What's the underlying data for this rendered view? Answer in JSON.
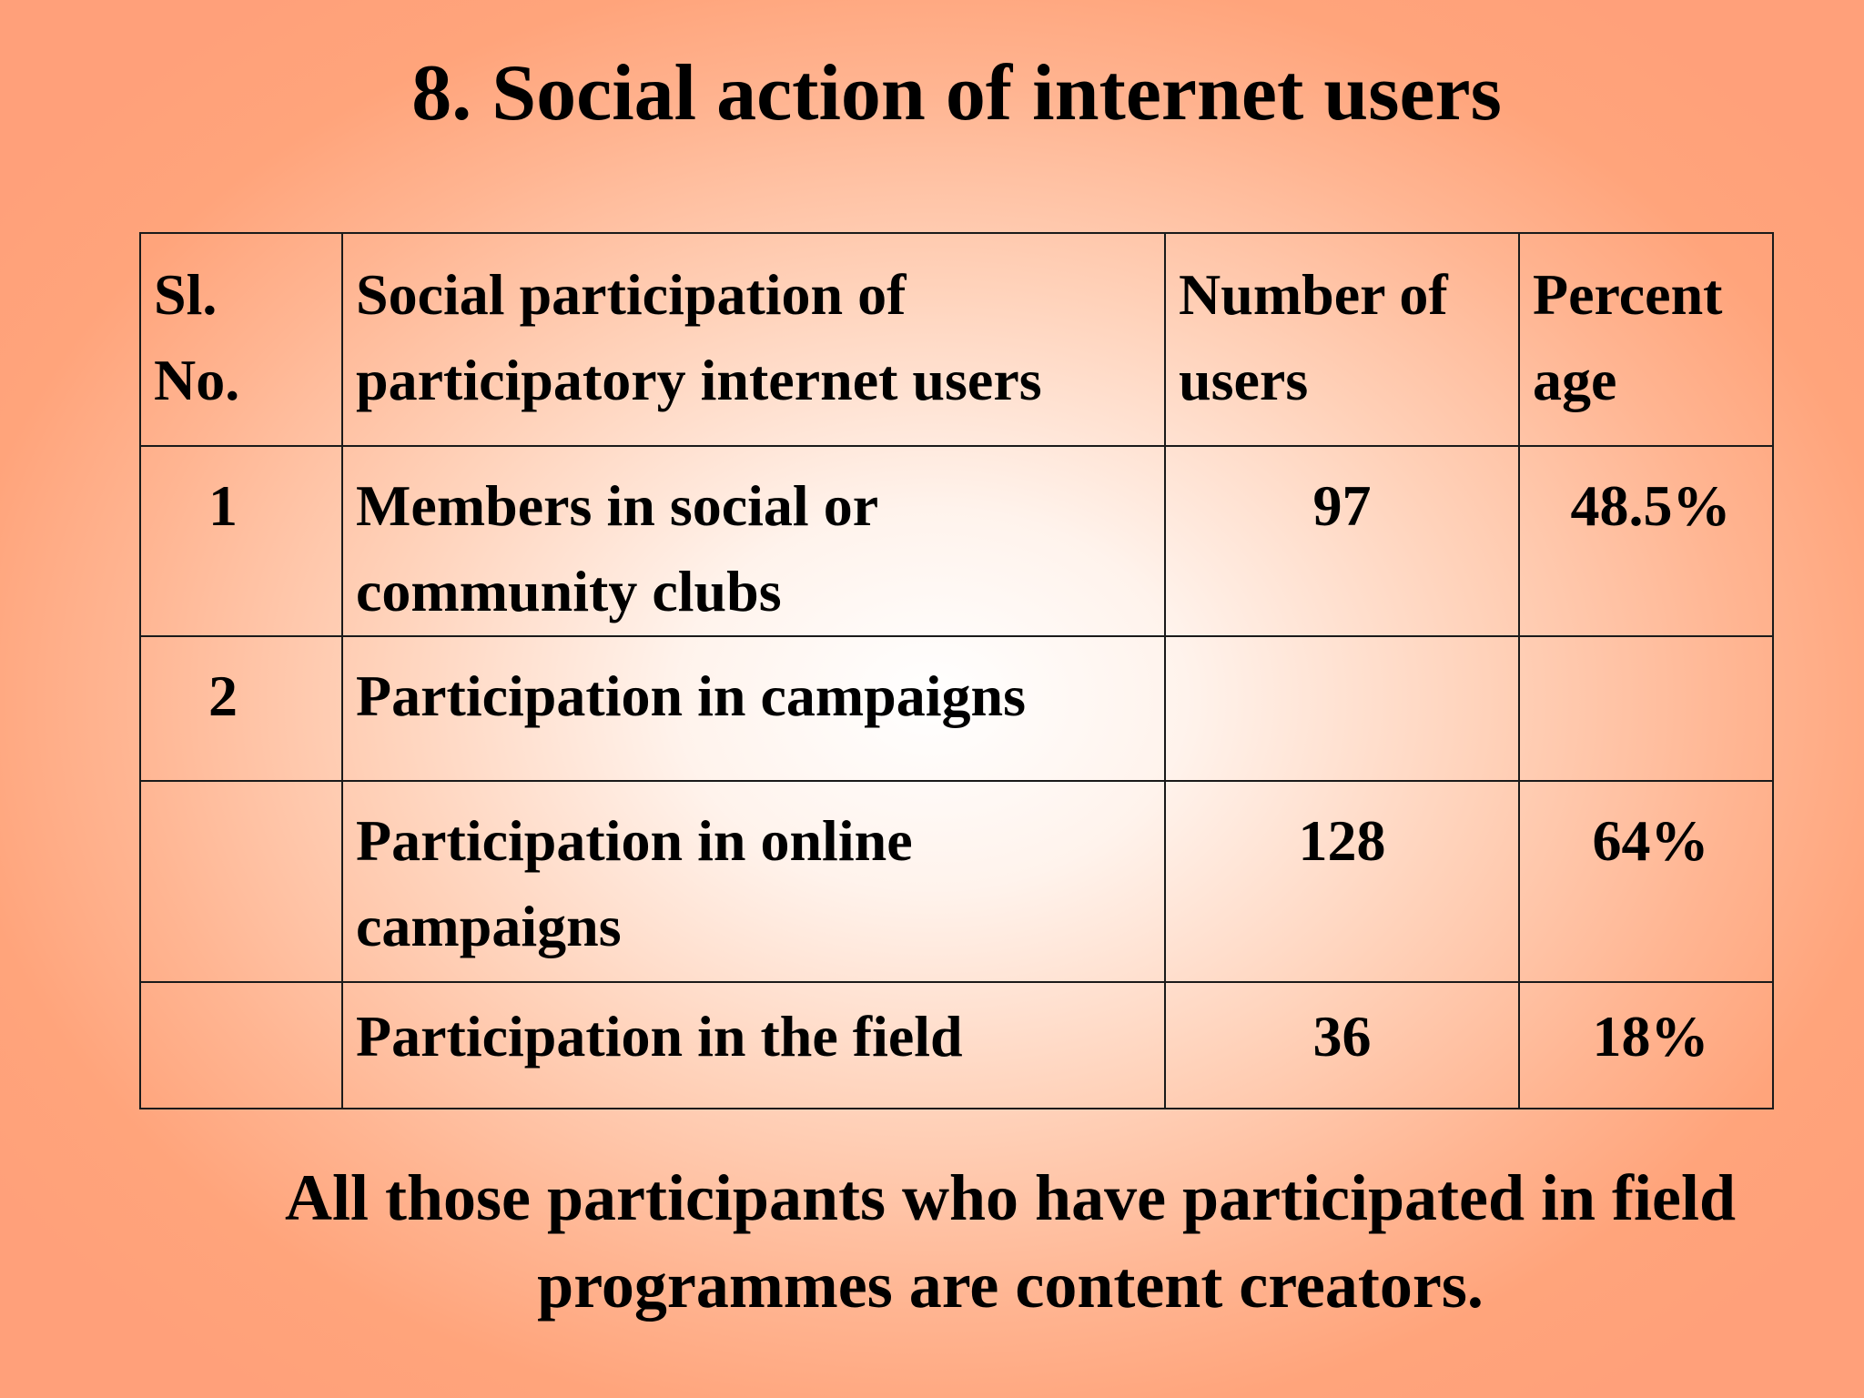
{
  "slide": {
    "title": "8.  Social action of internet users",
    "note": "All those participants who have participated in field programmes are content creators."
  },
  "table": {
    "headers": {
      "sl_no": [
        "Sl.",
        "No."
      ],
      "participation": [
        "Social participation of",
        "participatory internet users"
      ],
      "users": [
        "Number of",
        "users"
      ],
      "percent": [
        "Percent",
        "age"
      ]
    },
    "rows": [
      {
        "sl": "1",
        "label": [
          "Members in social or",
          "community clubs"
        ],
        "users": "97",
        "percent": "48.5%"
      },
      {
        "sl": "2",
        "label": [
          "Participation in campaigns"
        ],
        "users": "",
        "percent": ""
      },
      {
        "sl": "",
        "label": [
          "Participation in online",
          "campaigns"
        ],
        "users": "128",
        "percent": "64%"
      },
      {
        "sl": "",
        "label": [
          "Participation in the field"
        ],
        "users": "36",
        "percent": "18%"
      }
    ]
  }
}
